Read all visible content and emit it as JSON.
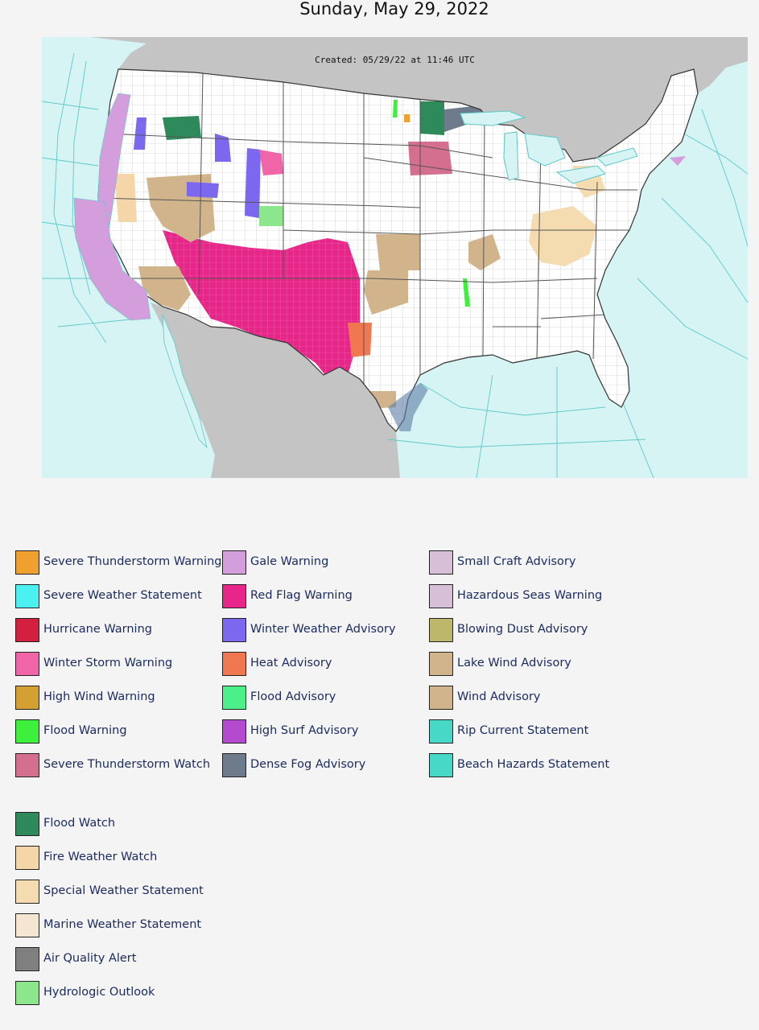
{
  "page": {
    "date": "Sunday, May 29, 2022"
  },
  "map": {
    "created_stamp": "Created: 05/29/22 at 11:46 UTC",
    "colors": {
      "ocean": "#d6f4f4",
      "land": "#ffffff",
      "foreign_land": "#c4c4c4",
      "county_line": "#b0b0b0",
      "state_line": "#444444",
      "marine_zone": "#5ec8c8"
    }
  },
  "legend": {
    "col1": [
      {
        "label": "Severe Thunderstorm Warning",
        "color": "#f0a02e"
      },
      {
        "label": "Severe Weather Statement",
        "color": "#4bf0f0"
      },
      {
        "label": "Hurricane Warning",
        "color": "#d4203f"
      },
      {
        "label": "Winter Storm Warning",
        "color": "#f064a8"
      },
      {
        "label": "High Wind Warning",
        "color": "#d4a032"
      },
      {
        "label": "Flood Warning",
        "color": "#3cf03c"
      },
      {
        "label": "Severe Thunderstorm Watch",
        "color": "#d4708e"
      }
    ],
    "col1b": [
      {
        "label": "Flood Watch",
        "color": "#2e8a5a"
      },
      {
        "label": "Fire Weather Watch",
        "color": "#f5d6a8"
      },
      {
        "label": "Special Weather Statement",
        "color": "#f5dcb0"
      },
      {
        "label": "Marine Weather Statement",
        "color": "#f5e6d2"
      },
      {
        "label": "Air Quality Alert",
        "color": "#808080"
      },
      {
        "label": "Hydrologic Outlook",
        "color": "#8ce68c"
      }
    ],
    "col2": [
      {
        "label": "Gale Warning",
        "color": "#d49edc"
      },
      {
        "label": "Red Flag Warning",
        "color": "#e8268a"
      },
      {
        "label": "Winter Weather Advisory",
        "color": "#7b68ee"
      },
      {
        "label": "Heat Advisory",
        "color": "#f07850"
      },
      {
        "label": "Flood Advisory",
        "color": "#4cf08a"
      },
      {
        "label": "High Surf Advisory",
        "color": "#b44ad0"
      },
      {
        "label": "Dense Fog Advisory",
        "color": "#6e7b8c"
      }
    ],
    "col3": [
      {
        "label": "Small Craft Advisory",
        "color": "#d8bfd8"
      },
      {
        "label": "Hazardous Seas Warning",
        "color": "#d8bfd8"
      },
      {
        "label": "Blowing Dust Advisory",
        "color": "#bdb76b"
      },
      {
        "label": "Lake Wind Advisory",
        "color": "#d2b48c"
      },
      {
        "label": "Wind Advisory",
        "color": "#d2b48c"
      },
      {
        "label": "Rip Current Statement",
        "color": "#48d8c8"
      },
      {
        "label": "Beach Hazards Statement",
        "color": "#48d8c8"
      }
    ]
  }
}
